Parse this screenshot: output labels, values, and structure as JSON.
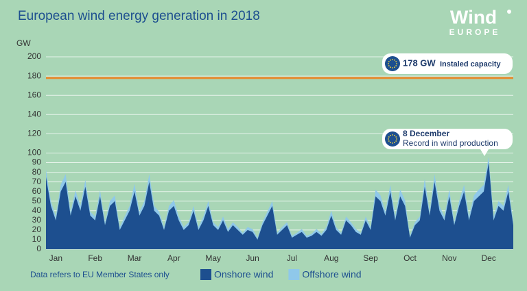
{
  "chart_data": {
    "type": "stacked_area",
    "title": "European wind energy generation in 2018",
    "logo": {
      "name": "Wind",
      "sub": "EUROPE"
    },
    "y_label": "GW",
    "footnote": "Data refers to EU Member States only",
    "ylim": [
      0,
      200
    ],
    "yticks": [
      0,
      10,
      20,
      30,
      40,
      50,
      60,
      70,
      80,
      90,
      100,
      120,
      140,
      160,
      180,
      200
    ],
    "grid": true,
    "categories": [
      null,
      null,
      "Jan",
      null,
      null,
      null,
      null,
      null,
      null,
      null,
      "Feb",
      null,
      null,
      null,
      null,
      null,
      null,
      null,
      "Mar",
      null,
      null,
      null,
      null,
      null,
      null,
      null,
      "Apr",
      null,
      null,
      null,
      null,
      null,
      null,
      null,
      "May",
      null,
      null,
      null,
      null,
      null,
      null,
      null,
      "Jun",
      null,
      null,
      null,
      null,
      null,
      null,
      null,
      "Jul",
      null,
      null,
      null,
      null,
      null,
      null,
      null,
      "Aug",
      null,
      null,
      null,
      null,
      null,
      null,
      null,
      "Sep",
      null,
      null,
      null,
      null,
      null,
      null,
      null,
      "Oct",
      null,
      null,
      null,
      null,
      null,
      null,
      null,
      "Nov",
      null,
      null,
      null,
      null,
      null,
      null,
      null,
      "Dec",
      null,
      null,
      null,
      null,
      null
    ],
    "series": [
      {
        "name": "Onshore wind",
        "color": "#1d4f8f",
        "values": [
          75,
          45,
          30,
          60,
          70,
          35,
          55,
          40,
          65,
          35,
          30,
          55,
          25,
          45,
          50,
          20,
          30,
          40,
          60,
          35,
          45,
          70,
          40,
          35,
          20,
          40,
          45,
          30,
          20,
          25,
          40,
          20,
          30,
          45,
          25,
          20,
          30,
          18,
          25,
          20,
          15,
          20,
          18,
          10,
          25,
          35,
          45,
          15,
          20,
          25,
          12,
          15,
          18,
          12,
          14,
          18,
          14,
          20,
          35,
          20,
          15,
          30,
          25,
          18,
          15,
          30,
          20,
          55,
          50,
          35,
          60,
          30,
          55,
          45,
          12,
          25,
          30,
          65,
          35,
          70,
          40,
          30,
          55,
          25,
          45,
          60,
          30,
          50,
          55,
          60,
          90,
          30,
          45,
          40,
          60,
          25
        ]
      },
      {
        "name": "Offshore wind",
        "color": "#8fc8ea",
        "values": [
          8,
          5,
          4,
          7,
          8,
          4,
          6,
          5,
          7,
          4,
          4,
          6,
          3,
          5,
          6,
          3,
          4,
          5,
          8,
          4,
          5,
          8,
          5,
          4,
          3,
          5,
          6,
          4,
          3,
          3,
          5,
          3,
          4,
          5,
          3,
          3,
          4,
          3,
          3,
          3,
          2,
          3,
          3,
          2,
          3,
          4,
          5,
          2,
          3,
          3,
          2,
          2,
          3,
          2,
          2,
          3,
          2,
          3,
          5,
          3,
          2,
          4,
          3,
          3,
          2,
          4,
          3,
          7,
          6,
          4,
          7,
          4,
          7,
          6,
          2,
          3,
          4,
          8,
          4,
          8,
          5,
          4,
          7,
          3,
          5,
          7,
          4,
          6,
          7,
          7,
          6,
          4,
          5,
          5,
          7,
          3
        ]
      }
    ],
    "capacity_line": {
      "value": 178,
      "label": "178 GW",
      "text": "Instaled capacity",
      "color": "#e8892b"
    },
    "record": {
      "title": "8 December",
      "text": "Record in wind production"
    }
  }
}
